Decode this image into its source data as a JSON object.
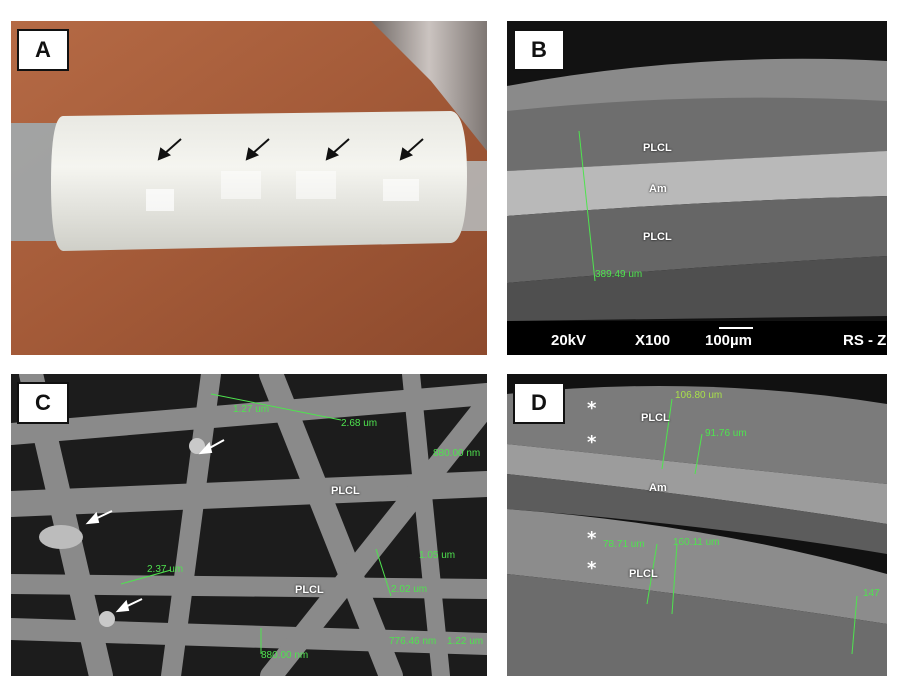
{
  "panels": {
    "a": {
      "label": "A"
    },
    "b": {
      "label": "B",
      "tissue": {
        "plcl_top": "PLCL",
        "am": "Am",
        "plcl_bottom": "PLCL"
      },
      "measurement": "389.49 um",
      "footer": {
        "kv": "20kV",
        "mag": "X100",
        "scale": "100µm",
        "id": "RS - Z"
      }
    },
    "c": {
      "label": "C",
      "tissue": {
        "plcl_1": "PLCL",
        "plcl_2": "PLCL"
      },
      "measurements": [
        "1.27 um",
        "2.68 um",
        "880.00 nm",
        "2.37 um",
        "1.05 um",
        "2.02 um",
        "880.00 nm",
        "776.46 nm",
        "1.22 um"
      ]
    },
    "d": {
      "label": "D",
      "tissue": {
        "plcl_top": "PLCL",
        "am": "Am",
        "plcl_bottom": "PLCL"
      },
      "measurements": [
        "106.80 um",
        "91.76 um",
        "78.71 um",
        "160.11 um",
        "147"
      ],
      "stars": [
        "*",
        "*",
        "*",
        "*"
      ]
    }
  },
  "colors": {
    "measurement": "#4fe34f",
    "background_a": "#a8603f"
  }
}
